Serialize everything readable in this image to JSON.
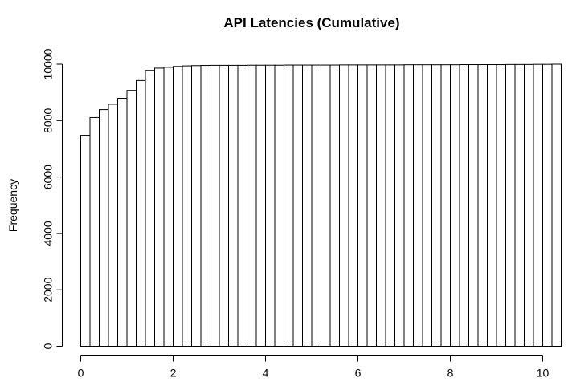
{
  "chart_data": {
    "type": "bar",
    "title": "API Latencies (Cumulative)",
    "xlabel": "",
    "ylabel": "Frequency",
    "xlim": [
      0,
      10.4
    ],
    "ylim": [
      0,
      10000
    ],
    "x_ticks": [
      "0",
      "2",
      "4",
      "6",
      "8",
      "10"
    ],
    "y_ticks": [
      "0",
      "2000",
      "4000",
      "6000",
      "8000",
      "10000"
    ],
    "bin_width": 0.2,
    "bin_starts": [
      0,
      0.2,
      0.4,
      0.6,
      0.8,
      1.0,
      1.2,
      1.4,
      1.6,
      1.8,
      2.0,
      2.2,
      2.4,
      2.6,
      2.8,
      3.0,
      3.2,
      3.4,
      3.6,
      3.8,
      4.0,
      4.2,
      4.4,
      4.6,
      4.8,
      5.0,
      5.2,
      5.4,
      5.6,
      5.8,
      6.0,
      6.2,
      6.4,
      6.6,
      6.8,
      7.0,
      7.2,
      7.4,
      7.6,
      7.8,
      8.0,
      8.2,
      8.4,
      8.6,
      8.8,
      9.0,
      9.2,
      9.4,
      9.6,
      9.8,
      10.0,
      10.2
    ],
    "values": [
      7480,
      8110,
      8390,
      8580,
      8790,
      9070,
      9420,
      9780,
      9860,
      9890,
      9920,
      9940,
      9950,
      9955,
      9960,
      9960,
      9960,
      9960,
      9965,
      9965,
      9965,
      9965,
      9970,
      9970,
      9970,
      9970,
      9970,
      9970,
      9975,
      9975,
      9975,
      9975,
      9975,
      9975,
      9975,
      9980,
      9980,
      9980,
      9980,
      9980,
      9980,
      9985,
      9985,
      9985,
      9985,
      9985,
      9990,
      9990,
      9990,
      9995,
      9995,
      10000
    ],
    "grid": false,
    "legend": "none"
  }
}
